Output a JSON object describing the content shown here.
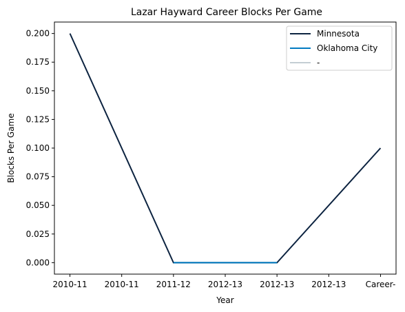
{
  "chart_data": {
    "type": "line",
    "title": "Lazar Hayward Career Blocks Per Game",
    "xlabel": "Year",
    "ylabel": "Blocks Per Game",
    "categories": [
      "2010-11",
      "2010-11",
      "2011-12",
      "2012-13",
      "2012-13",
      "2012-13",
      "Career-"
    ],
    "ylim": [
      -0.01,
      0.21
    ],
    "yticks": [
      0.0,
      0.025,
      0.05,
      0.075,
      0.1,
      0.125,
      0.15,
      0.175,
      0.2
    ],
    "ytick_labels": [
      "0.000",
      "0.025",
      "0.050",
      "0.075",
      "0.100",
      "0.125",
      "0.150",
      "0.175",
      "0.200"
    ],
    "grid": false,
    "legend_position": "top-right",
    "series": [
      {
        "name": "Minnesota",
        "color": "#0c2340",
        "points": [
          [
            0,
            0.2
          ],
          [
            2,
            0.0
          ],
          [
            4,
            0.0
          ],
          [
            6,
            0.1
          ]
        ]
      },
      {
        "name": "Oklahoma City",
        "color": "#007ac1",
        "points": [
          [
            2,
            0.0
          ],
          [
            4,
            0.0
          ]
        ]
      },
      {
        "name": "-",
        "color": "#c4ced4",
        "points": []
      }
    ]
  }
}
